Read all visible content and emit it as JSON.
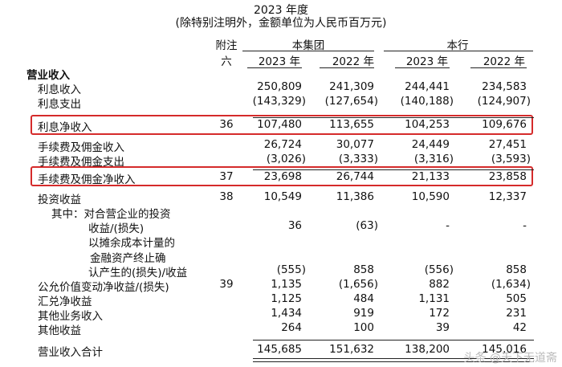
{
  "header": {
    "period": "2023 年度",
    "unit_note": "(除特别注明外，金额单位为人民币百万元)"
  },
  "columns": {
    "note_label_1": "附注",
    "note_label_2": "六",
    "group": "本集团",
    "bank": "本行",
    "years": [
      "2023 年",
      "2022 年",
      "2023 年",
      "2022 年"
    ]
  },
  "rows": [
    {
      "label": "营业收入",
      "note": "",
      "values": [
        "",
        "",
        "",
        ""
      ],
      "bold": true
    },
    {
      "label": "利息收入",
      "note": "",
      "values": [
        "250,809",
        "241,309",
        "244,441",
        "234,583"
      ]
    },
    {
      "label": "利息支出",
      "note": "",
      "values": [
        "(143,329)",
        "(127,654)",
        "(140,188)",
        "(124,907)"
      ]
    },
    {
      "label": "利息净收入",
      "note": "36",
      "values": [
        "107,480",
        "113,655",
        "104,253",
        "109,676"
      ]
    },
    {
      "label": "手续费及佣金收入",
      "note": "",
      "values": [
        "26,724",
        "30,077",
        "24,449",
        "27,451"
      ]
    },
    {
      "label": "手续费及佣金支出",
      "note": "",
      "values": [
        "(3,026)",
        "(3,333)",
        "(3,316)",
        "(3,593)"
      ]
    },
    {
      "label": "手续费及佣金净收入",
      "note": "37",
      "values": [
        "23,698",
        "26,744",
        "21,133",
        "23,858"
      ]
    },
    {
      "label": "投资收益",
      "note": "38",
      "values": [
        "10,549",
        "11,386",
        "10,590",
        "12,337"
      ]
    },
    {
      "label": "其中：对合营企业的投资",
      "note": "",
      "values": [
        "",
        "",
        "",
        ""
      ]
    },
    {
      "label": "收益/(损失)",
      "note": "",
      "values": [
        "36",
        "(63)",
        "-",
        "-"
      ]
    },
    {
      "label": "以摊余成本计量的",
      "note": "",
      "values": [
        "",
        "",
        "",
        ""
      ]
    },
    {
      "label": "金融资产终止确",
      "note": "",
      "values": [
        "",
        "",
        "",
        ""
      ]
    },
    {
      "label": "认产生的(损失)/收益",
      "note": "",
      "values": [
        "(555)",
        "858",
        "(556)",
        "858"
      ]
    },
    {
      "label": "公允价值变动净收益/(损失)",
      "note": "39",
      "values": [
        "1,135",
        "(1,656)",
        "882",
        "(1,634)"
      ]
    },
    {
      "label": "汇兑净收益",
      "note": "",
      "values": [
        "1,125",
        "484",
        "1,131",
        "505"
      ]
    },
    {
      "label": "其他业务收入",
      "note": "",
      "values": [
        "1,434",
        "919",
        "172",
        "231"
      ]
    },
    {
      "label": "其他收益",
      "note": "",
      "values": [
        "264",
        "100",
        "39",
        "42"
      ]
    },
    {
      "label": "营业收入合计",
      "note": "",
      "values": [
        "145,685",
        "151,632",
        "138,200",
        "145,016"
      ]
    }
  ],
  "watermark": "头条 @天下无道斋"
}
